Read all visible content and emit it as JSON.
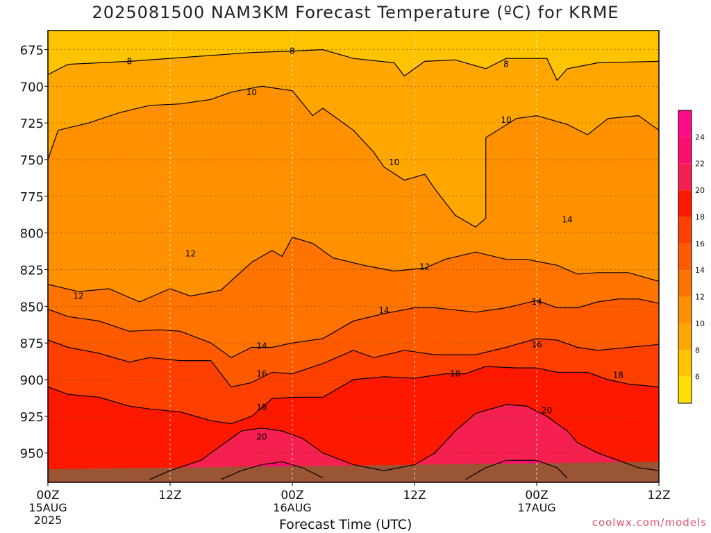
{
  "title": "2025081500 NAM3KM Forecast Temperature (ºC) for KRME",
  "credit": "coolwx.com/models",
  "chart_data": {
    "type": "contour",
    "xlabel": "Forecast Time (UTC)",
    "ylabel": "",
    "x_ticks": [
      {
        "hour": 0,
        "label": "00Z",
        "sub": "15AUG",
        "sub2": "2025"
      },
      {
        "hour": 12,
        "label": "12Z",
        "sub": "",
        "sub2": ""
      },
      {
        "hour": 24,
        "label": "00Z",
        "sub": "16AUG",
        "sub2": ""
      },
      {
        "hour": 36,
        "label": "12Z",
        "sub": "",
        "sub2": ""
      },
      {
        "hour": 48,
        "label": "00Z",
        "sub": "17AUG",
        "sub2": ""
      },
      {
        "hour": 60,
        "label": "12Z",
        "sub": "",
        "sub2": ""
      }
    ],
    "xlim": [
      0,
      60
    ],
    "y_ticks": [
      675,
      700,
      725,
      750,
      775,
      800,
      825,
      850,
      875,
      900,
      925,
      950
    ],
    "ylim": [
      662,
      970
    ],
    "y_axis": "pressure (hPa), increasing downward",
    "grid": true,
    "colorbar": {
      "ticks": [
        6,
        8,
        10,
        12,
        14,
        16,
        18,
        20,
        22,
        24
      ],
      "levels": [
        {
          "min": 4,
          "max": 6,
          "color": "#ffe000"
        },
        {
          "min": 6,
          "max": 8,
          "color": "#ffc400"
        },
        {
          "min": 8,
          "max": 10,
          "color": "#ffa600"
        },
        {
          "min": 10,
          "max": 12,
          "color": "#ff9000"
        },
        {
          "min": 12,
          "max": 14,
          "color": "#ff7400"
        },
        {
          "min": 14,
          "max": 16,
          "color": "#ff5a00"
        },
        {
          "min": 16,
          "max": 18,
          "color": "#ff3f00"
        },
        {
          "min": 18,
          "max": 20,
          "color": "#ff1800"
        },
        {
          "min": 20,
          "max": 22,
          "color": "#f52050"
        },
        {
          "min": 22,
          "max": 24,
          "color": "#ff0d6e"
        },
        {
          "min": 24,
          "max": 26,
          "color": "#ff0a88"
        }
      ]
    },
    "ground": {
      "color": "#9a5535",
      "top_start": 961,
      "top_end": 956
    },
    "contours": [
      {
        "value": 8,
        "label": "8",
        "points": [
          [
            0,
            692
          ],
          [
            2,
            685
          ],
          [
            8,
            683
          ],
          [
            14,
            680
          ],
          [
            20,
            677
          ],
          [
            24,
            676
          ],
          [
            27,
            675
          ],
          [
            30,
            681
          ],
          [
            34,
            684
          ],
          [
            35,
            693
          ],
          [
            37,
            683
          ],
          [
            40,
            682
          ],
          [
            43,
            688
          ],
          [
            45,
            681
          ],
          [
            49,
            681
          ],
          [
            50,
            696
          ],
          [
            51,
            688
          ],
          [
            54,
            684
          ],
          [
            60,
            683
          ]
        ]
      },
      {
        "value": 10,
        "label": "10",
        "points": [
          [
            0,
            750
          ],
          [
            1,
            730
          ],
          [
            4,
            725
          ],
          [
            7,
            718
          ],
          [
            10,
            713
          ],
          [
            13,
            712
          ],
          [
            16,
            709
          ],
          [
            18,
            704
          ],
          [
            21,
            700
          ],
          [
            24,
            703
          ],
          [
            26,
            720
          ],
          [
            27,
            715
          ],
          [
            30,
            730
          ],
          [
            32,
            745
          ],
          [
            33,
            755
          ],
          [
            35,
            764
          ],
          [
            37,
            760
          ],
          [
            38,
            770
          ],
          [
            40,
            788
          ],
          [
            42,
            796
          ],
          [
            43,
            790
          ],
          [
            43,
            735
          ],
          [
            46,
            722
          ],
          [
            48,
            720
          ],
          [
            51,
            726
          ],
          [
            53,
            733
          ],
          [
            55,
            722
          ],
          [
            58,
            720
          ],
          [
            60,
            730
          ]
        ]
      },
      {
        "value": 12,
        "label": "12",
        "points": [
          [
            0,
            835
          ],
          [
            3,
            840
          ],
          [
            6,
            838
          ],
          [
            9,
            847
          ],
          [
            12,
            838
          ],
          [
            14,
            843
          ],
          [
            17,
            839
          ],
          [
            20,
            820
          ],
          [
            22,
            812
          ],
          [
            23,
            816
          ],
          [
            24,
            803
          ],
          [
            26,
            807
          ],
          [
            28,
            817
          ],
          [
            31,
            822
          ],
          [
            34,
            826
          ],
          [
            37,
            824
          ],
          [
            39,
            818
          ],
          [
            42,
            813
          ],
          [
            45,
            818
          ],
          [
            47,
            818
          ],
          [
            50,
            822
          ],
          [
            52,
            828
          ],
          [
            54,
            827
          ],
          [
            57,
            827
          ],
          [
            60,
            833
          ]
        ]
      },
      {
        "value": 14,
        "label": "14",
        "points": [
          [
            0,
            852
          ],
          [
            2,
            857
          ],
          [
            5,
            860
          ],
          [
            8,
            867
          ],
          [
            11,
            866
          ],
          [
            13,
            867
          ],
          [
            16,
            875
          ],
          [
            18,
            885
          ],
          [
            20,
            878
          ],
          [
            22,
            878
          ],
          [
            24,
            875
          ],
          [
            27,
            872
          ],
          [
            30,
            860
          ],
          [
            33,
            855
          ],
          [
            36,
            851
          ],
          [
            38,
            851
          ],
          [
            42,
            854
          ],
          [
            45,
            851
          ],
          [
            48,
            846
          ],
          [
            50,
            851
          ],
          [
            52,
            851
          ],
          [
            54,
            847
          ],
          [
            56,
            845
          ],
          [
            58,
            845
          ],
          [
            60,
            848
          ]
        ]
      },
      {
        "value": 16,
        "label": "16",
        "points": [
          [
            0,
            873
          ],
          [
            2,
            878
          ],
          [
            5,
            882
          ],
          [
            8,
            888
          ],
          [
            10,
            885
          ],
          [
            13,
            887
          ],
          [
            16,
            887
          ],
          [
            18,
            905
          ],
          [
            20,
            902
          ],
          [
            22,
            895
          ],
          [
            24,
            896
          ],
          [
            27,
            889
          ],
          [
            30,
            880
          ],
          [
            32,
            885
          ],
          [
            35,
            880
          ],
          [
            38,
            883
          ],
          [
            42,
            883
          ],
          [
            45,
            878
          ],
          [
            48,
            872
          ],
          [
            50,
            873
          ],
          [
            52,
            878
          ],
          [
            54,
            880
          ],
          [
            57,
            878
          ],
          [
            60,
            876
          ]
        ]
      },
      {
        "value": 18,
        "label": "18",
        "points": [
          [
            0,
            905
          ],
          [
            2,
            910
          ],
          [
            5,
            912
          ],
          [
            8,
            918
          ],
          [
            10,
            920
          ],
          [
            13,
            922
          ],
          [
            16,
            928
          ],
          [
            18,
            930
          ],
          [
            20,
            925
          ],
          [
            22,
            913
          ],
          [
            24,
            912
          ],
          [
            27,
            912
          ],
          [
            30,
            900
          ],
          [
            33,
            898
          ],
          [
            36,
            899
          ],
          [
            39,
            896
          ],
          [
            41,
            896
          ],
          [
            43,
            891
          ],
          [
            46,
            892
          ],
          [
            48,
            892
          ],
          [
            50,
            895
          ],
          [
            53,
            895
          ],
          [
            55,
            900
          ],
          [
            57,
            903
          ],
          [
            60,
            905
          ]
        ]
      },
      {
        "value": 20,
        "label": "20",
        "points": [
          [
            10,
            968
          ],
          [
            12,
            962
          ],
          [
            15,
            955
          ],
          [
            17,
            945
          ],
          [
            19,
            935
          ],
          [
            21,
            933
          ],
          [
            23,
            935
          ],
          [
            25,
            940
          ],
          [
            27,
            950
          ],
          [
            30,
            958
          ],
          [
            33,
            962
          ],
          [
            36,
            958
          ],
          [
            38,
            950
          ],
          [
            40,
            935
          ],
          [
            42,
            923
          ],
          [
            45,
            917
          ],
          [
            47,
            918
          ],
          [
            49,
            925
          ],
          [
            51,
            935
          ],
          [
            52,
            943
          ],
          [
            54,
            950
          ],
          [
            56,
            955
          ],
          [
            58,
            960
          ],
          [
            60,
            962
          ]
        ]
      },
      {
        "value": 22,
        "label": "",
        "points": [
          [
            17,
            968
          ],
          [
            19,
            962
          ],
          [
            21,
            958
          ],
          [
            23,
            956
          ],
          [
            25,
            960
          ],
          [
            27,
            967
          ]
        ]
      },
      {
        "value": 22,
        "label": "",
        "points": [
          [
            41,
            968
          ],
          [
            43,
            960
          ],
          [
            45,
            955
          ],
          [
            48,
            955
          ],
          [
            50,
            960
          ],
          [
            51,
            967
          ]
        ]
      }
    ],
    "contour_labels": [
      {
        "text": "8",
        "x": 8,
        "y": 683
      },
      {
        "text": "8",
        "x": 24,
        "y": 676
      },
      {
        "text": "8",
        "x": 45,
        "y": 685
      },
      {
        "text": "10",
        "x": 20,
        "y": 704
      },
      {
        "text": "10",
        "x": 34,
        "y": 752
      },
      {
        "text": "10",
        "x": 45,
        "y": 723
      },
      {
        "text": "12",
        "x": 14,
        "y": 814
      },
      {
        "text": "12",
        "x": 3,
        "y": 843
      },
      {
        "text": "12",
        "x": 37,
        "y": 823
      },
      {
        "text": "14",
        "x": 21,
        "y": 877
      },
      {
        "text": "14",
        "x": 33,
        "y": 853
      },
      {
        "text": "14",
        "x": 48,
        "y": 847
      },
      {
        "text": "14",
        "x": 51,
        "y": 791
      },
      {
        "text": "16",
        "x": 21,
        "y": 896
      },
      {
        "text": "16",
        "x": 48,
        "y": 876
      },
      {
        "text": "18",
        "x": 21,
        "y": 919
      },
      {
        "text": "18",
        "x": 40,
        "y": 896
      },
      {
        "text": "18",
        "x": 56,
        "y": 897
      },
      {
        "text": "20",
        "x": 21,
        "y": 939
      },
      {
        "text": "20",
        "x": 49,
        "y": 921
      }
    ]
  }
}
